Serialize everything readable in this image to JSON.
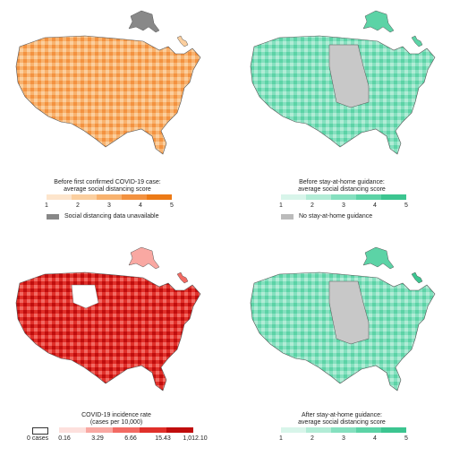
{
  "panels": {
    "top_left": {
      "title_line1": "Before first confirmed COVID-19 case:",
      "title_line2": "average social distancing score",
      "ticks": [
        "1",
        "2",
        "3",
        "4",
        "5"
      ],
      "colors": [
        "#fde5cc",
        "#fbcf9f",
        "#f8b26e",
        "#f39240",
        "#ec7a16"
      ],
      "note": "Social distancing data unavailable",
      "note_color": "#888888"
    },
    "top_right": {
      "title_line1": "Before stay-at-home guidance:",
      "title_line2": "average social distancing score",
      "ticks": [
        "1",
        "2",
        "3",
        "4",
        "5"
      ],
      "colors": [
        "#d8f5ea",
        "#b2ecd6",
        "#85e0bf",
        "#5cd3a6",
        "#3cc590"
      ],
      "note": "No stay-at-home guidance",
      "note_color": "#bbbbbb"
    },
    "bottom_left": {
      "title_line1": "COVID-19 incidence rate",
      "title_line2": "(cases per 10,000)",
      "zero_label": "0 cases",
      "ticks": [
        "0.16",
        "3.29",
        "6.66",
        "15.43",
        "1,012.10"
      ],
      "colors": [
        "#fde0dd",
        "#f9a8a2",
        "#f26a63",
        "#e0302a",
        "#c00d0d"
      ]
    },
    "bottom_right": {
      "title_line1": "After stay-at-home guidance:",
      "title_line2": "average social distancing score",
      "ticks": [
        "1",
        "2",
        "3",
        "4",
        "5"
      ],
      "colors": [
        "#d8f5ea",
        "#b2ecd6",
        "#85e0bf",
        "#5cd3a6",
        "#3cc590"
      ]
    }
  }
}
